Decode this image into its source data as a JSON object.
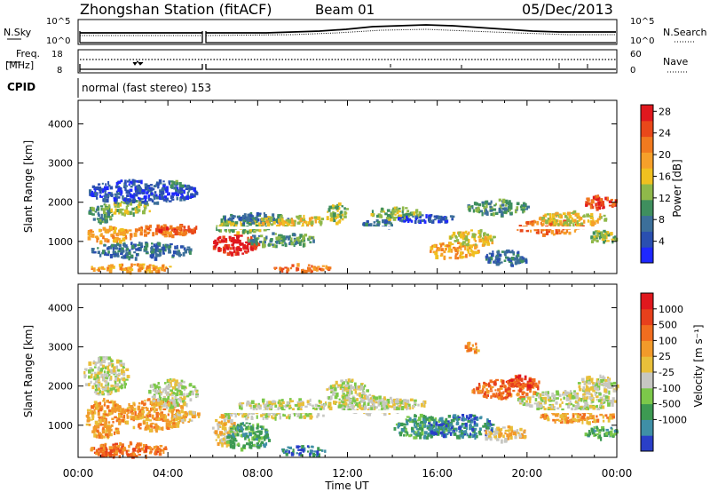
{
  "header": {
    "station": "Zhongshan Station (fitACF)",
    "beam": "Beam 01",
    "date": "05/Dec/2013"
  },
  "strip_labels": {
    "nsky": "N.Sky",
    "nsky_ticks": [
      "10^5",
      "10^0"
    ],
    "nsearch": "N.Search",
    "nsearch_ticks": [
      "10^5",
      "10^0"
    ],
    "freq_line1": "Freq.",
    "freq_line2": "[MHz]",
    "freq_ticks": [
      "18",
      "8"
    ],
    "nave": "Nave",
    "nave_ticks": [
      "60",
      "0"
    ],
    "cpid": "CPID",
    "mode": "normal (fast stereo) 153"
  },
  "x_axis": {
    "label": "Time UT",
    "ticks": [
      "00:00",
      "04:00",
      "08:00",
      "12:00",
      "16:00",
      "20:00",
      "00:00"
    ]
  },
  "colors": {
    "power": [
      "#1e28ff",
      "#2a4fb0",
      "#3c6f9a",
      "#3f8f5e",
      "#8fb84a",
      "#f0c020",
      "#f6a02a",
      "#f17a1f",
      "#e9481a",
      "#e0181e"
    ],
    "velocity": [
      "#2a3fc8",
      "#3f8fa6",
      "#3d9a52",
      "#7cc84a",
      "#c7c7c2",
      "#e9bf3a",
      "#f29a2a",
      "#f16d1f",
      "#e7401c",
      "#e0181e"
    ]
  },
  "chart_data": [
    {
      "type": "heatmap",
      "title": "Power",
      "ylabel": "Slant Range [km]",
      "xlabel": "",
      "ylim": [
        180,
        4600
      ],
      "xlim": [
        0,
        24
      ],
      "y_ticks": [
        "1000",
        "2000",
        "3000",
        "4000"
      ],
      "colorbar": {
        "label": "Power [dB]",
        "ticks": [
          "4",
          "8",
          "12",
          "16",
          "20",
          "24",
          "28"
        ]
      },
      "patches": [
        [
          0.3,
          2.5,
          1000,
          1400,
          6
        ],
        [
          2.5,
          4.8,
          1150,
          1450,
          7
        ],
        [
          3.5,
          5.4,
          1250,
          1450,
          8
        ],
        [
          0.4,
          1.5,
          1500,
          2000,
          3
        ],
        [
          1.2,
          3.3,
          1700,
          2100,
          4
        ],
        [
          0.3,
          5.3,
          2000,
          2600,
          1
        ],
        [
          0.5,
          5.0,
          600,
          1000,
          2
        ],
        [
          0.5,
          4.3,
          250,
          450,
          6
        ],
        [
          4.0,
          4.6,
          2300,
          2600,
          3
        ],
        [
          5.9,
          8.0,
          700,
          1200,
          9
        ],
        [
          6.0,
          8.5,
          1250,
          1600,
          4
        ],
        [
          6.2,
          9.5,
          1500,
          1750,
          2
        ],
        [
          8.0,
          11.0,
          1400,
          1700,
          5
        ],
        [
          7.5,
          10.5,
          900,
          1250,
          3
        ],
        [
          8.7,
          11.2,
          250,
          450,
          7
        ],
        [
          11.0,
          12.0,
          1500,
          2000,
          4
        ],
        [
          12.5,
          14.0,
          1350,
          1600,
          2
        ],
        [
          13.0,
          15.2,
          1600,
          1900,
          4
        ],
        [
          15.5,
          17.8,
          600,
          1000,
          6
        ],
        [
          16.5,
          18.5,
          900,
          1350,
          5
        ],
        [
          17.3,
          20.0,
          1700,
          2100,
          3
        ],
        [
          18.0,
          20.0,
          400,
          800,
          2
        ],
        [
          19.5,
          22.5,
          1200,
          1600,
          7
        ],
        [
          20.5,
          23.5,
          1450,
          1800,
          5
        ],
        [
          22.5,
          24.0,
          1850,
          2200,
          8
        ],
        [
          22.6,
          24.0,
          1000,
          1300,
          4
        ],
        [
          14.0,
          17.0,
          1500,
          1700,
          1
        ]
      ]
    },
    {
      "type": "heatmap",
      "title": "Velocity",
      "ylabel": "Slant Range [km]",
      "xlabel": "Time UT",
      "ylim": [
        180,
        4600
      ],
      "xlim": [
        0,
        24
      ],
      "y_ticks": [
        "1000",
        "2000",
        "3000",
        "4000"
      ],
      "colorbar": {
        "label": "Velocity [m s⁻¹]",
        "ticks": [
          "1000",
          "500",
          "100",
          "25",
          "-25",
          "-100",
          "-500",
          "-1000"
        ]
      },
      "patches": [
        [
          0.2,
          2.2,
          1800,
          2800,
          4
        ],
        [
          0.3,
          2.0,
          700,
          1700,
          6
        ],
        [
          1.8,
          4.8,
          900,
          1700,
          6
        ],
        [
          0.5,
          4.0,
          200,
          600,
          7
        ],
        [
          3.0,
          5.3,
          1500,
          2200,
          4
        ],
        [
          4.2,
          5.4,
          1100,
          1400,
          5
        ],
        [
          5.9,
          7.0,
          500,
          1300,
          5
        ],
        [
          6.5,
          8.5,
          400,
          1100,
          2
        ],
        [
          6.0,
          11.0,
          1200,
          1400,
          4
        ],
        [
          7.0,
          11.5,
          1400,
          1700,
          4
        ],
        [
          9.0,
          11.0,
          250,
          500,
          1
        ],
        [
          11.0,
          13.0,
          1500,
          2200,
          4
        ],
        [
          11.5,
          14.5,
          1300,
          1800,
          4
        ],
        [
          13.5,
          15.5,
          1450,
          1700,
          4
        ],
        [
          14.0,
          16.5,
          700,
          1300,
          2
        ],
        [
          15.5,
          18.5,
          700,
          1300,
          1
        ],
        [
          17.5,
          20.5,
          1700,
          2200,
          7
        ],
        [
          19.0,
          20.5,
          2000,
          2300,
          8
        ],
        [
          18.0,
          20.0,
          600,
          1000,
          5
        ],
        [
          19.5,
          24.0,
          1400,
          1900,
          4
        ],
        [
          20.5,
          24.0,
          1100,
          1400,
          6
        ],
        [
          22.2,
          24.0,
          1800,
          2300,
          4
        ],
        [
          22.5,
          24.0,
          700,
          1000,
          2
        ],
        [
          17.2,
          17.8,
          2850,
          3150,
          6
        ]
      ]
    }
  ]
}
